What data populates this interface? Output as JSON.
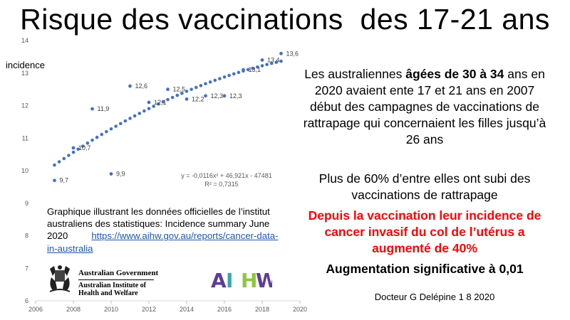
{
  "title": "Risque des vaccinations  des 17-21 ans",
  "chart_data": {
    "type": "scatter",
    "ylabel": "incidence",
    "xlim": [
      2006,
      2020
    ],
    "ylim": [
      6,
      14
    ],
    "x_ticks": [
      "2006",
      "2008",
      "2010",
      "2012",
      "2014",
      "2016",
      "2018",
      "2020"
    ],
    "y_ticks": [
      "6",
      "7",
      "8",
      "9",
      "10",
      "11",
      "12",
      "13",
      "14"
    ],
    "series": [
      {
        "name": "",
        "kind": "observed",
        "color": "#4472c4",
        "x": [
          2007,
          2008,
          2009,
          2010,
          2011,
          2012,
          2013,
          2014,
          2015,
          2016,
          2017,
          2018,
          2019
        ],
        "y": [
          9.7,
          10.7,
          11.9,
          9.9,
          12.6,
          12.1,
          12.5,
          12.2,
          12.3,
          12.3,
          13.1,
          13.4,
          13.6
        ],
        "point_labels": [
          "9,7",
          "10,7",
          "11,9",
          "9,9",
          "12,6",
          "12,1",
          "12,5",
          "12,2",
          "12,3",
          "12,3",
          "13,1",
          "13,4",
          "13,6"
        ]
      },
      {
        "name": "",
        "kind": "trendline",
        "color": "#4472c4",
        "equation": "y = -0,0116x² + 46,921x - 47481",
        "r_squared": "R² = 0,7315",
        "x_range": [
          2007,
          2019
        ],
        "step": 0.25
      }
    ]
  },
  "caption": {
    "text": "Graphique illustrant les données officielles de l’institut australiens des statistiques: Incidence summary June 2020",
    "link": "https://www.aihw.gov.au/reports/cancer-data-in-australia"
  },
  "logos": {
    "gov_name": "Australian Government",
    "inst_line1": "Australian Institute of",
    "inst_line2": "Health and Welfare",
    "aihw_text": "AIHW",
    "aihw_colors": [
      "#5e3c96",
      "#3aa6a6",
      "#8dc63f",
      "#5e3c96"
    ]
  },
  "paragraph1": {
    "pre": "Les australiennes ",
    "bold": "âgées de 30 à 34",
    "post": " ans en 2020 avaient ente 17 et 21 ans en 2007 début des campagnes de vaccinations de rattrapage  qui concernaient les filles jusqu’à 26 ans"
  },
  "paragraph2": "Plus de 60% d’entre elles ont subi des vaccinations de rattrapage",
  "paragraph3": "Depuis la vaccination leur incidence de cancer invasif du col de l’utérus a augmenté de 40%",
  "paragraph4": "Augmentation significative à 0,01",
  "author": "Docteur G Delépine 1 8 2020"
}
